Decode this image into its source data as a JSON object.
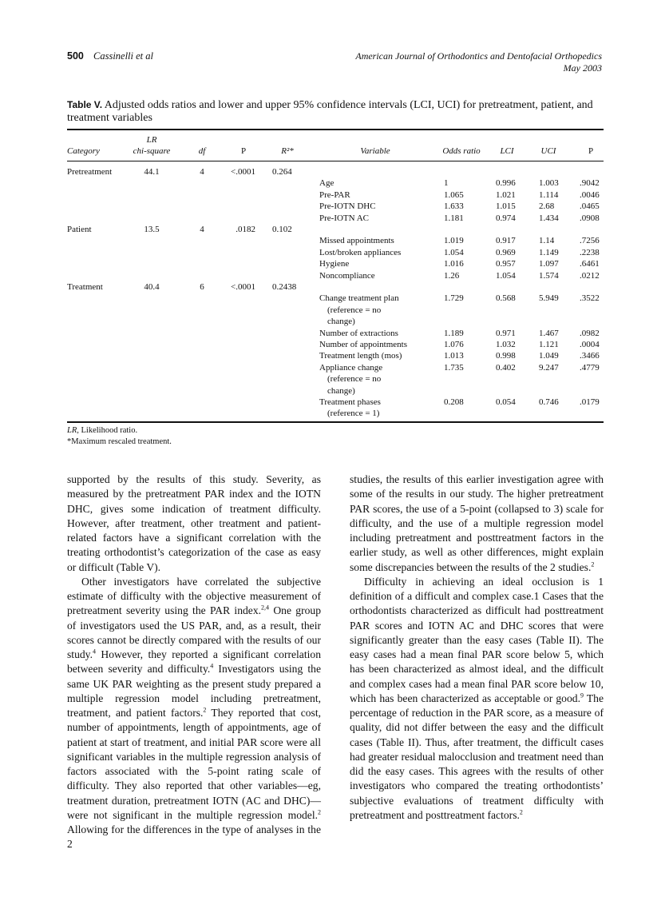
{
  "header": {
    "page_number": "500",
    "authors": "Cassinelli et al",
    "journal": "American Journal of Orthodontics and Dentofacial Orthopedics",
    "date": "May 2003"
  },
  "table": {
    "label": "Table V.",
    "caption": "Adjusted odds ratios and lower and upper 95% confidence intervals (LCI, UCI) for pretreatment, patient, and treatment variables",
    "headers": {
      "category": "Category",
      "lr_line1": "LR",
      "lr_line2": "chi-square",
      "df": "df",
      "p": "P",
      "r2": "R²*",
      "variable": "Variable",
      "odds": "Odds ratio",
      "lci": "LCI",
      "uci": "UCI",
      "p2": "P"
    },
    "categories": [
      {
        "name": "Pretreatment",
        "lr": "44.1",
        "df": "4",
        "p": "<.0001",
        "r2": "0.264",
        "line": 0
      },
      {
        "name": "Patient",
        "lr": "13.5",
        "df": "4",
        "p": ".0182",
        "r2": "0.102",
        "line": 5
      },
      {
        "name": "Treatment",
        "lr": "40.4",
        "df": "6",
        "p": "<.0001",
        "r2": "0.2438",
        "line": 10
      }
    ],
    "variables": [
      {
        "lines": [
          "Age"
        ],
        "or": "1",
        "lci": "0.996",
        "uci": "1.003",
        "p": ".9042",
        "line": 1
      },
      {
        "lines": [
          "Pre-PAR"
        ],
        "or": "1.065",
        "lci": "1.021",
        "uci": "1.114",
        "p": ".0046",
        "line": 2
      },
      {
        "lines": [
          "Pre-IOTN DHC"
        ],
        "or": "1.633",
        "lci": "1.015",
        "uci": "2.68",
        "p": ".0465",
        "line": 3
      },
      {
        "lines": [
          "Pre-IOTN AC"
        ],
        "or": "1.181",
        "lci": "0.974",
        "uci": "1.434",
        "p": ".0908",
        "line": 4
      },
      {
        "lines": [
          "Missed appointments"
        ],
        "or": "1.019",
        "lci": "0.917",
        "uci": "1.14",
        "p": ".7256",
        "line": 6
      },
      {
        "lines": [
          "Lost/broken appliances"
        ],
        "or": "1.054",
        "lci": "0.969",
        "uci": "1.149",
        "p": ".2238",
        "line": 7
      },
      {
        "lines": [
          "Hygiene"
        ],
        "or": "1.016",
        "lci": "0.957",
        "uci": "1.097",
        "p": ".6461",
        "line": 8
      },
      {
        "lines": [
          "Noncompliance"
        ],
        "or": "1.26",
        "lci": "1.054",
        "uci": "1.574",
        "p": ".0212",
        "line": 9
      },
      {
        "lines": [
          "Change treatment plan",
          "(reference = no",
          "change)"
        ],
        "or": "1.729",
        "lci": "0.568",
        "uci": "5.949",
        "p": ".3522",
        "line": 11
      },
      {
        "lines": [
          "Number of extractions"
        ],
        "or": "1.189",
        "lci": "0.971",
        "uci": "1.467",
        "p": ".0982",
        "line": 14
      },
      {
        "lines": [
          "Number of appointments"
        ],
        "or": "1.076",
        "lci": "1.032",
        "uci": "1.121",
        "p": ".0004",
        "line": 15
      },
      {
        "lines": [
          "Treatment length (mos)"
        ],
        "or": "1.013",
        "lci": "0.998",
        "uci": "1.049",
        "p": ".3466",
        "line": 16
      },
      {
        "lines": [
          "Appliance change",
          "(reference = no",
          "change)"
        ],
        "or": "1.735",
        "lci": "0.402",
        "uci": "9.247",
        "p": ".4779",
        "line": 17
      },
      {
        "lines": [
          "Treatment phases",
          "(reference = 1)"
        ],
        "or": "0.208",
        "lci": "0.054",
        "uci": "0.746",
        "p": ".0179",
        "line": 20
      }
    ],
    "footnotes": {
      "lr_abbr": "LR,",
      "lr_text": " Likelihood ratio.",
      "asterisk": "*Maximum rescaled treatment."
    }
  },
  "body": {
    "left": [
      {
        "indent": false,
        "segs": [
          "supported by the results of this study. Severity, as measured by the pretreatment PAR index and the IOTN DHC, gives some indication of treatment difficulty. However, after treatment, other treatment and patient-related factors have a significant correlation with the treating orthodontist’s categorization of the case as easy or difficult (Table V)."
        ]
      },
      {
        "indent": true,
        "segs": [
          "Other investigators have correlated the subjective estimate of difficulty with the objective measurement of pretreatment severity using the PAR index.",
          {
            "sup": "2,4"
          },
          " One group of investigators used the US PAR, and, as a result, their scores cannot be directly compared with the results of our study.",
          {
            "sup": "4"
          },
          " However, they reported a significant correlation between severity and difficulty.",
          {
            "sup": "4"
          },
          " Investigators using the same UK PAR weighting as the present study prepared a multiple regression model including pretreatment, treatment, and patient factors.",
          {
            "sup": "2"
          },
          " They reported that cost, number of appointments, length of appointments, age of patient at start of treatment, and initial PAR score were all significant variables in the multiple regression analysis of factors associated with the 5-point rating scale of difficulty. They also reported that other variables—eg, treatment duration, pretreatment IOTN (AC and DHC)—were not significant in the multiple regression model.",
          {
            "sup": "2"
          },
          " Allowing for the differences in the type of analyses in the 2"
        ]
      }
    ],
    "right": [
      {
        "indent": false,
        "segs": [
          "studies, the results of this earlier investigation agree with some of the results in our study. The higher pretreatment PAR scores, the use of a 5-point (collapsed to 3) scale for difficulty, and the use of a multiple regression model including pretreatment and posttreatment factors in the earlier study, as well as other differences, might explain some discrepancies between the results of the 2 studies.",
          {
            "sup": "2"
          }
        ]
      },
      {
        "indent": true,
        "segs": [
          "Difficulty in achieving an ideal occlusion is 1 definition of a difficult and complex case.1 Cases that the orthodontists characterized as difficult had posttreatment PAR scores and IOTN AC and DHC scores that were significantly greater than the easy cases (Table II). The easy cases had a mean final PAR score below 5, which has been characterized as almost ideal, and the difficult and complex cases had a mean final PAR score below 10, which has been characterized as acceptable or good.",
          {
            "sup": "9"
          },
          " The percentage of reduction in the PAR score, as a measure of quality, did not differ between the easy and the difficult cases (Table II). Thus, after treatment, the difficult cases had greater residual malocclusion and treatment need than did the easy cases. This agrees with the results of other investigators who compared the treating orthodontists’ subjective evaluations of treatment difficulty with pretreatment and posttreatment factors.",
          {
            "sup": "2"
          }
        ]
      }
    ]
  }
}
